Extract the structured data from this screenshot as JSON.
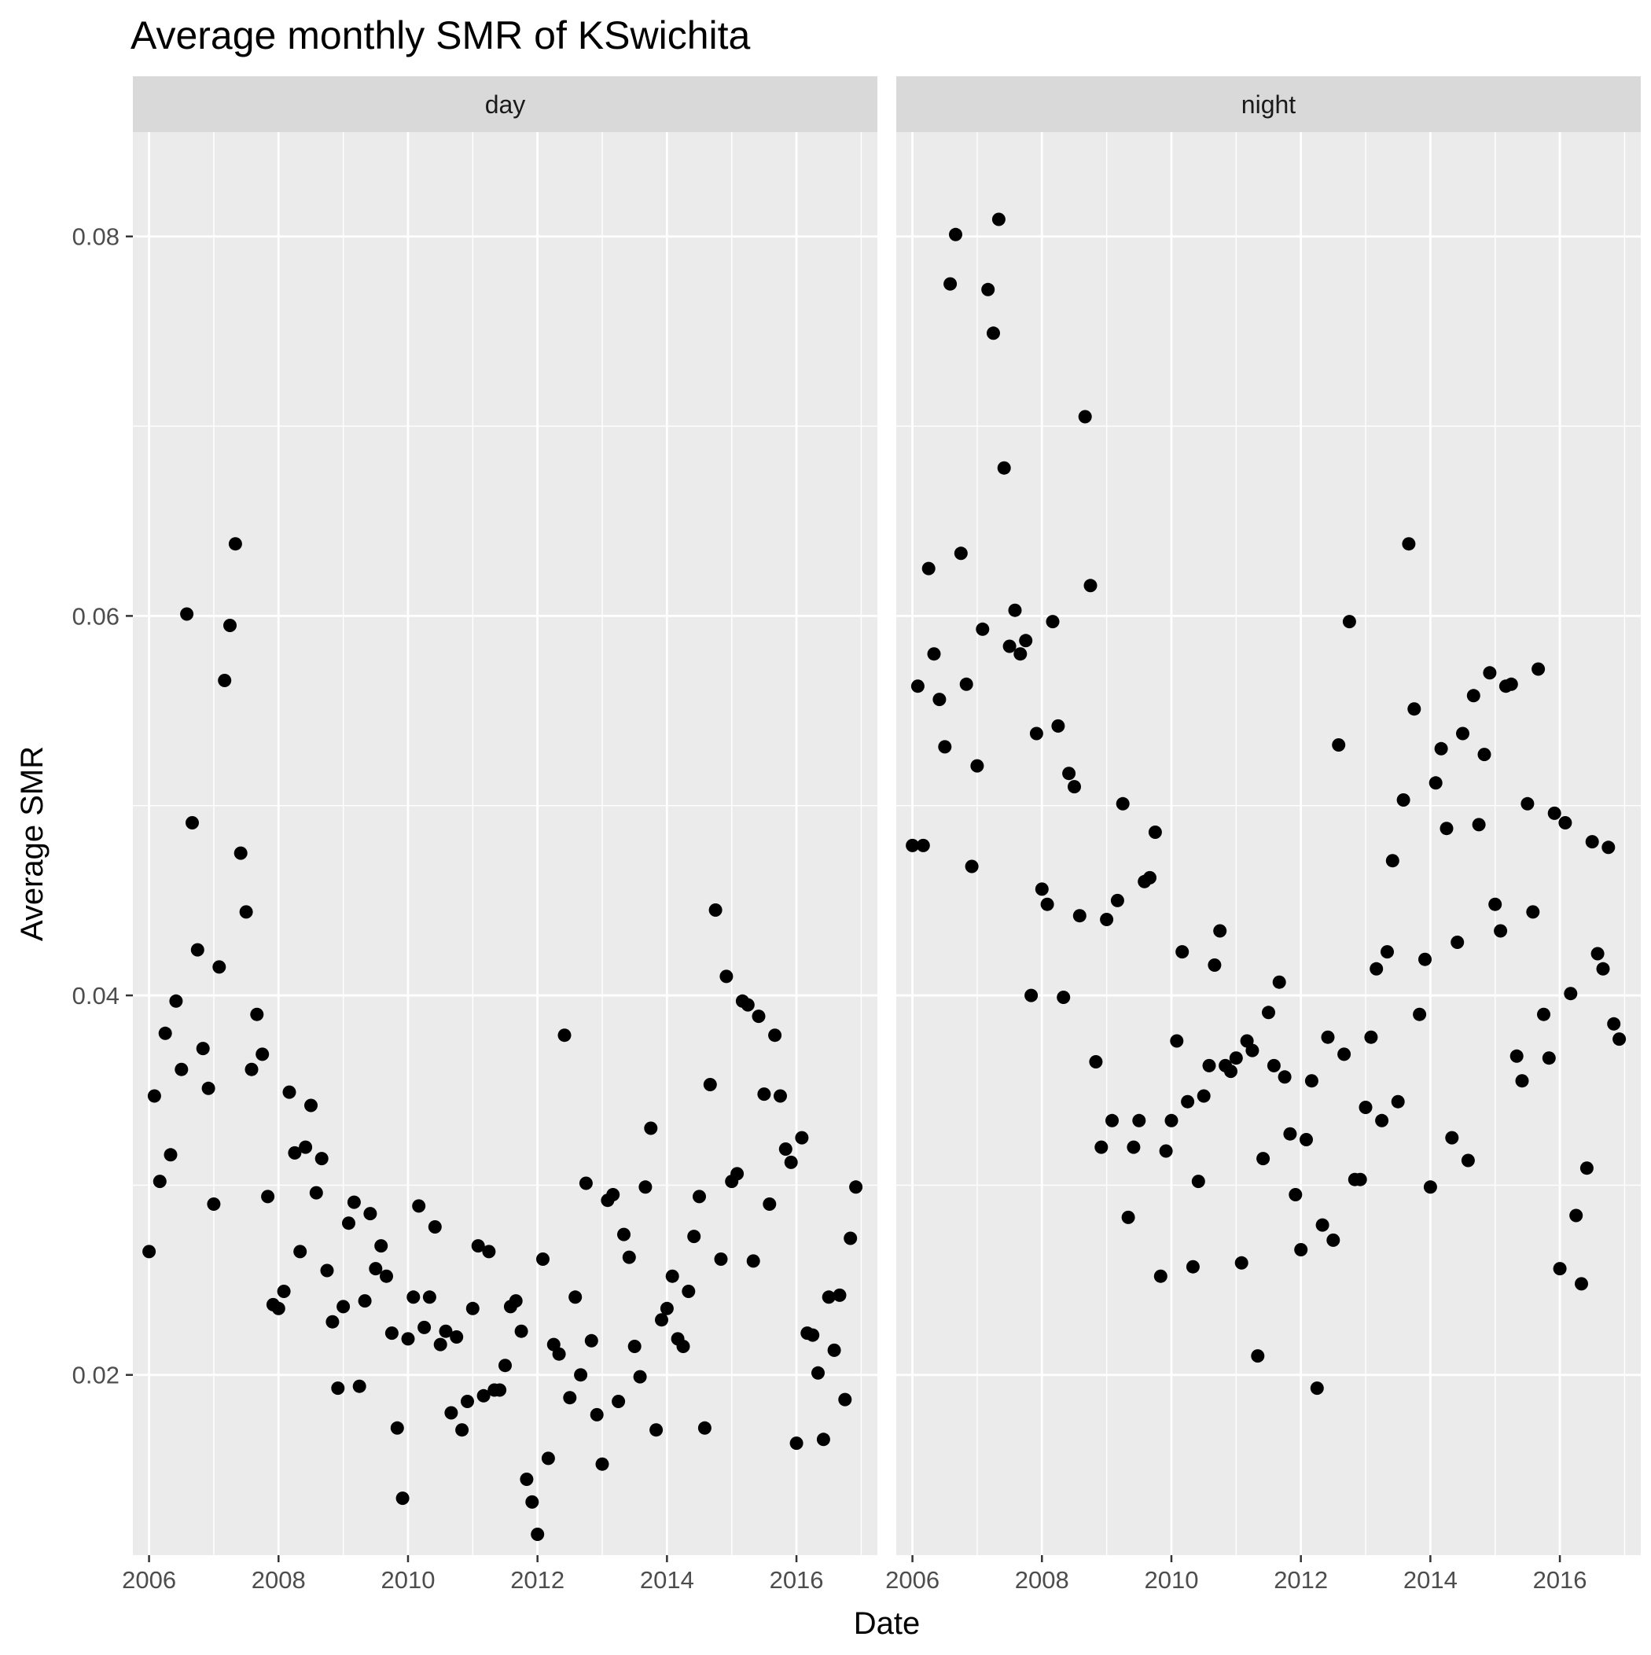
{
  "colors": {
    "panel_background": "#ebebeb",
    "strip_background": "#d9d9d9",
    "grid_major": "#ffffff",
    "point": "#000000"
  },
  "chart_data": {
    "type": "scatter",
    "title": "Average monthly SMR of KSwichita",
    "xlabel": "Date",
    "ylabel": "Average SMR",
    "x_ticks": [
      "2006",
      "2008",
      "2010",
      "2012",
      "2014",
      "2016"
    ],
    "y_ticks": [
      "0.02",
      "0.04",
      "0.06",
      "0.08"
    ],
    "xlim": [
      "2005-10",
      "2017-04"
    ],
    "ylim": [
      0.0105,
      0.0855
    ],
    "grid": true,
    "facets": [
      {
        "label": "day",
        "points": [
          [
            "2006-01",
            0.0265
          ],
          [
            "2006-02",
            0.0347
          ],
          [
            "2006-03",
            0.0302
          ],
          [
            "2006-04",
            0.038
          ],
          [
            "2006-05",
            0.0316
          ],
          [
            "2006-06",
            0.0397
          ],
          [
            "2006-07",
            0.0361
          ],
          [
            "2006-08",
            0.0601
          ],
          [
            "2006-09",
            0.0491
          ],
          [
            "2006-10",
            0.0424
          ],
          [
            "2006-11",
            0.0372
          ],
          [
            "2006-12",
            0.0351
          ],
          [
            "2007-01",
            0.029
          ],
          [
            "2007-02",
            0.0415
          ],
          [
            "2007-03",
            0.0566
          ],
          [
            "2007-04",
            0.0595
          ],
          [
            "2007-05",
            0.0638
          ],
          [
            "2007-06",
            0.0475
          ],
          [
            "2007-07",
            0.0444
          ],
          [
            "2007-08",
            0.0361
          ],
          [
            "2007-09",
            0.039
          ],
          [
            "2007-10",
            0.0369
          ],
          [
            "2007-11",
            0.0294
          ],
          [
            "2007-12",
            0.0237
          ],
          [
            "2008-01",
            0.0235
          ],
          [
            "2008-02",
            0.0244
          ],
          [
            "2008-03",
            0.0349
          ],
          [
            "2008-04",
            0.0317
          ],
          [
            "2008-05",
            0.0265
          ],
          [
            "2008-06",
            0.032
          ],
          [
            "2008-07",
            0.0342
          ],
          [
            "2008-08",
            0.0296
          ],
          [
            "2008-09",
            0.0314
          ],
          [
            "2008-10",
            0.0255
          ],
          [
            "2008-11",
            0.0228
          ],
          [
            "2008-12",
            0.0193
          ],
          [
            "2009-01",
            0.0236
          ],
          [
            "2009-02",
            0.028
          ],
          [
            "2009-03",
            0.0291
          ],
          [
            "2009-04",
            0.0194
          ],
          [
            "2009-05",
            0.0239
          ],
          [
            "2009-06",
            0.0285
          ],
          [
            "2009-07",
            0.0256
          ],
          [
            "2009-08",
            0.0268
          ],
          [
            "2009-09",
            0.0252
          ],
          [
            "2009-10",
            0.0222
          ],
          [
            "2009-11",
            0.0172
          ],
          [
            "2009-12",
            0.0135
          ],
          [
            "2010-01",
            0.0219
          ],
          [
            "2010-02",
            0.0241
          ],
          [
            "2010-03",
            0.0289
          ],
          [
            "2010-04",
            0.0225
          ],
          [
            "2010-05",
            0.0241
          ],
          [
            "2010-06",
            0.0278
          ],
          [
            "2010-07",
            0.0216
          ],
          [
            "2010-08",
            0.0223
          ],
          [
            "2010-09",
            0.018
          ],
          [
            "2010-10",
            0.022
          ],
          [
            "2010-11",
            0.0171
          ],
          [
            "2010-12",
            0.0186
          ],
          [
            "2011-01",
            0.0235
          ],
          [
            "2011-02",
            0.0268
          ],
          [
            "2011-03",
            0.0189
          ],
          [
            "2011-04",
            0.0265
          ],
          [
            "2011-05",
            0.0192
          ],
          [
            "2011-06",
            0.0192
          ],
          [
            "2011-07",
            0.0205
          ],
          [
            "2011-08",
            0.0236
          ],
          [
            "2011-09",
            0.0239
          ],
          [
            "2011-10",
            0.0223
          ],
          [
            "2011-11",
            0.0145
          ],
          [
            "2011-12",
            0.0133
          ],
          [
            "2012-01",
            0.0116
          ],
          [
            "2012-02",
            0.0261
          ],
          [
            "2012-03",
            0.0156
          ],
          [
            "2012-04",
            0.0216
          ],
          [
            "2012-05",
            0.0211
          ],
          [
            "2012-06",
            0.0379
          ],
          [
            "2012-07",
            0.0188
          ],
          [
            "2012-08",
            0.0241
          ],
          [
            "2012-09",
            0.02
          ],
          [
            "2012-10",
            0.0301
          ],
          [
            "2012-11",
            0.0218
          ],
          [
            "2012-12",
            0.0179
          ],
          [
            "2013-01",
            0.0153
          ],
          [
            "2013-02",
            0.0292
          ],
          [
            "2013-03",
            0.0295
          ],
          [
            "2013-04",
            0.0186
          ],
          [
            "2013-05",
            0.0274
          ],
          [
            "2013-06",
            0.0262
          ],
          [
            "2013-07",
            0.0215
          ],
          [
            "2013-08",
            0.0199
          ],
          [
            "2013-09",
            0.0299
          ],
          [
            "2013-10",
            0.033
          ],
          [
            "2013-11",
            0.0171
          ],
          [
            "2013-12",
            0.0229
          ],
          [
            "2014-01",
            0.0235
          ],
          [
            "2014-02",
            0.0252
          ],
          [
            "2014-03",
            0.0219
          ],
          [
            "2014-04",
            0.0215
          ],
          [
            "2014-05",
            0.0244
          ],
          [
            "2014-06",
            0.0273
          ],
          [
            "2014-07",
            0.0294
          ],
          [
            "2014-08",
            0.0172
          ],
          [
            "2014-09",
            0.0353
          ],
          [
            "2014-10",
            0.0445
          ],
          [
            "2014-11",
            0.0261
          ],
          [
            "2014-12",
            0.041
          ],
          [
            "2015-01",
            0.0302
          ],
          [
            "2015-02",
            0.0306
          ],
          [
            "2015-03",
            0.0397
          ],
          [
            "2015-04",
            0.0395
          ],
          [
            "2015-05",
            0.026
          ],
          [
            "2015-06",
            0.0389
          ],
          [
            "2015-07",
            0.0348
          ],
          [
            "2015-08",
            0.029
          ],
          [
            "2015-09",
            0.0379
          ],
          [
            "2015-10",
            0.0347
          ],
          [
            "2015-11",
            0.0319
          ],
          [
            "2015-12",
            0.0312
          ],
          [
            "2016-01",
            0.0164
          ],
          [
            "2016-02",
            0.0325
          ],
          [
            "2016-03",
            0.0222
          ],
          [
            "2016-04",
            0.0221
          ],
          [
            "2016-05",
            0.0201
          ],
          [
            "2016-06",
            0.0166
          ],
          [
            "2016-07",
            0.0241
          ],
          [
            "2016-08",
            0.0213
          ],
          [
            "2016-09",
            0.0242
          ],
          [
            "2016-10",
            0.0187
          ],
          [
            "2016-11",
            0.0272
          ],
          [
            "2016-12",
            0.0299
          ]
        ]
      },
      {
        "label": "night",
        "points": [
          [
            "2006-01",
            0.0479
          ],
          [
            "2006-02",
            0.0563
          ],
          [
            "2006-03",
            0.0479
          ],
          [
            "2006-04",
            0.0625
          ],
          [
            "2006-05",
            0.058
          ],
          [
            "2006-06",
            0.0556
          ],
          [
            "2006-07",
            0.0531
          ],
          [
            "2006-08",
            0.0775
          ],
          [
            "2006-09",
            0.0801
          ],
          [
            "2006-10",
            0.0633
          ],
          [
            "2006-11",
            0.0564
          ],
          [
            "2006-12",
            0.0468
          ],
          [
            "2007-01",
            0.0521
          ],
          [
            "2007-02",
            0.0593
          ],
          [
            "2007-03",
            0.0772
          ],
          [
            "2007-04",
            0.0749
          ],
          [
            "2007-05",
            0.0809
          ],
          [
            "2007-06",
            0.0678
          ],
          [
            "2007-07",
            0.0584
          ],
          [
            "2007-08",
            0.0603
          ],
          [
            "2007-09",
            0.058
          ],
          [
            "2007-10",
            0.0587
          ],
          [
            "2007-11",
            0.04
          ],
          [
            "2007-12",
            0.0538
          ],
          [
            "2008-01",
            0.0456
          ],
          [
            "2008-02",
            0.0448
          ],
          [
            "2008-03",
            0.0597
          ],
          [
            "2008-04",
            0.0542
          ],
          [
            "2008-05",
            0.0399
          ],
          [
            "2008-06",
            0.0517
          ],
          [
            "2008-07",
            0.051
          ],
          [
            "2008-08",
            0.0442
          ],
          [
            "2008-09",
            0.0705
          ],
          [
            "2008-10",
            0.0616
          ],
          [
            "2008-11",
            0.0365
          ],
          [
            "2008-12",
            0.032
          ],
          [
            "2009-01",
            0.044
          ],
          [
            "2009-02",
            0.0334
          ],
          [
            "2009-03",
            0.045
          ],
          [
            "2009-04",
            0.0501
          ],
          [
            "2009-05",
            0.0283
          ],
          [
            "2009-06",
            0.032
          ],
          [
            "2009-07",
            0.0334
          ],
          [
            "2009-08",
            0.046
          ],
          [
            "2009-09",
            0.0462
          ],
          [
            "2009-10",
            0.0486
          ],
          [
            "2009-11",
            0.0252
          ],
          [
            "2009-12",
            0.0318
          ],
          [
            "2010-01",
            0.0334
          ],
          [
            "2010-02",
            0.0376
          ],
          [
            "2010-03",
            0.0423
          ],
          [
            "2010-04",
            0.0344
          ],
          [
            "2010-05",
            0.0257
          ],
          [
            "2010-06",
            0.0302
          ],
          [
            "2010-07",
            0.0347
          ],
          [
            "2010-08",
            0.0363
          ],
          [
            "2010-09",
            0.0416
          ],
          [
            "2010-10",
            0.0434
          ],
          [
            "2010-11",
            0.0363
          ],
          [
            "2010-12",
            0.036
          ],
          [
            "2011-01",
            0.0367
          ],
          [
            "2011-02",
            0.0259
          ],
          [
            "2011-03",
            0.0376
          ],
          [
            "2011-04",
            0.0371
          ],
          [
            "2011-05",
            0.021
          ],
          [
            "2011-06",
            0.0314
          ],
          [
            "2011-07",
            0.0391
          ],
          [
            "2011-08",
            0.0363
          ],
          [
            "2011-09",
            0.0407
          ],
          [
            "2011-10",
            0.0357
          ],
          [
            "2011-11",
            0.0327
          ],
          [
            "2011-12",
            0.0295
          ],
          [
            "2012-01",
            0.0266
          ],
          [
            "2012-02",
            0.0324
          ],
          [
            "2012-03",
            0.0355
          ],
          [
            "2012-04",
            0.0193
          ],
          [
            "2012-05",
            0.0279
          ],
          [
            "2012-06",
            0.0378
          ],
          [
            "2012-07",
            0.0271
          ],
          [
            "2012-08",
            0.0532
          ],
          [
            "2012-09",
            0.0369
          ],
          [
            "2012-10",
            0.0597
          ],
          [
            "2012-11",
            0.0303
          ],
          [
            "2012-12",
            0.0303
          ],
          [
            "2013-01",
            0.0341
          ],
          [
            "2013-02",
            0.0378
          ],
          [
            "2013-03",
            0.0414
          ],
          [
            "2013-04",
            0.0334
          ],
          [
            "2013-05",
            0.0423
          ],
          [
            "2013-06",
            0.0471
          ],
          [
            "2013-07",
            0.0344
          ],
          [
            "2013-08",
            0.0503
          ],
          [
            "2013-09",
            0.0638
          ],
          [
            "2013-10",
            0.0551
          ],
          [
            "2013-11",
            0.039
          ],
          [
            "2013-12",
            0.0419
          ],
          [
            "2014-01",
            0.0299
          ],
          [
            "2014-02",
            0.0512
          ],
          [
            "2014-03",
            0.053
          ],
          [
            "2014-04",
            0.0488
          ],
          [
            "2014-05",
            0.0325
          ],
          [
            "2014-06",
            0.0428
          ],
          [
            "2014-07",
            0.0538
          ],
          [
            "2014-08",
            0.0313
          ],
          [
            "2014-09",
            0.0558
          ],
          [
            "2014-10",
            0.049
          ],
          [
            "2014-11",
            0.0527
          ],
          [
            "2014-12",
            0.057
          ],
          [
            "2015-01",
            0.0448
          ],
          [
            "2015-02",
            0.0434
          ],
          [
            "2015-03",
            0.0563
          ],
          [
            "2015-04",
            0.0564
          ],
          [
            "2015-05",
            0.0368
          ],
          [
            "2015-06",
            0.0355
          ],
          [
            "2015-07",
            0.0501
          ],
          [
            "2015-08",
            0.0444
          ],
          [
            "2015-09",
            0.0572
          ],
          [
            "2015-10",
            0.039
          ],
          [
            "2015-11",
            0.0367
          ],
          [
            "2015-12",
            0.0496
          ],
          [
            "2016-01",
            0.0256
          ],
          [
            "2016-02",
            0.0491
          ],
          [
            "2016-03",
            0.0401
          ],
          [
            "2016-04",
            0.0284
          ],
          [
            "2016-05",
            0.0248
          ],
          [
            "2016-06",
            0.0309
          ],
          [
            "2016-07",
            0.0481
          ],
          [
            "2016-08",
            0.0422
          ],
          [
            "2016-09",
            0.0414
          ],
          [
            "2016-10",
            0.0478
          ],
          [
            "2016-11",
            0.0385
          ],
          [
            "2016-12",
            0.0377
          ]
        ]
      }
    ]
  }
}
